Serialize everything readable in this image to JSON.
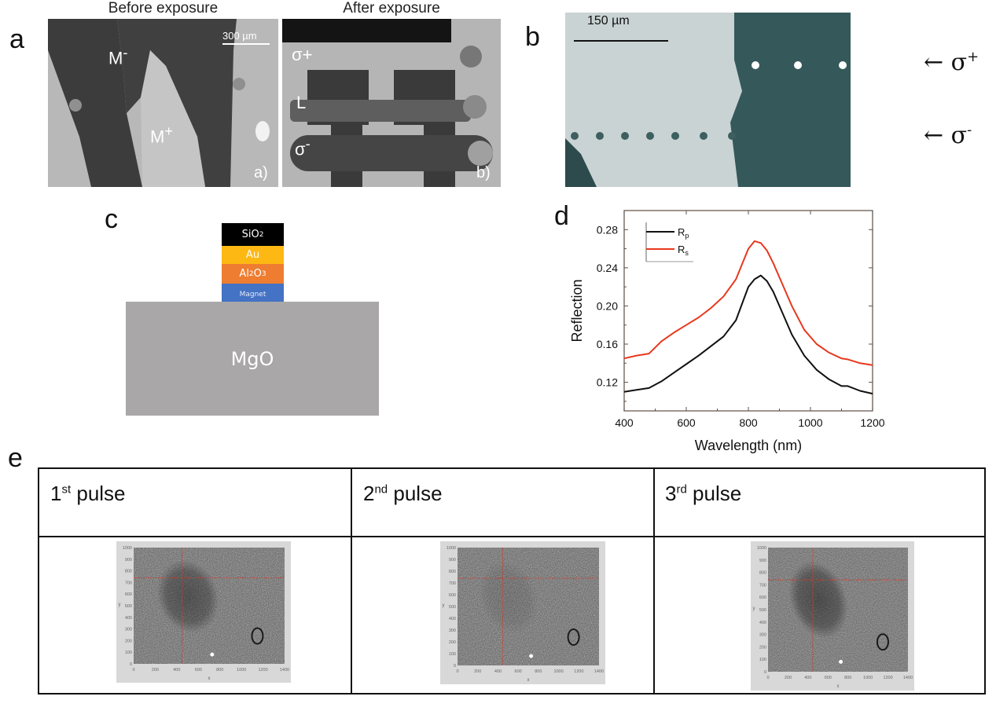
{
  "panels": {
    "a": {
      "letter": "a",
      "left_caption": "Before exposure",
      "right_caption": "After exposure",
      "scale_bar": "300 µm",
      "left_labels": {
        "m_minus": "M",
        "m_minus_sup": "-",
        "m_plus": "M",
        "m_plus_sup": "+",
        "corner": "a)"
      },
      "right_labels": {
        "sigma_plus": "σ+",
        "l": "L",
        "sigma_minus": "σ",
        "sigma_minus_sup": "-",
        "corner": "b)"
      }
    },
    "b": {
      "letter": "b",
      "scale_bar": "150 µm",
      "arrow_top": "← σ",
      "arrow_top_sup": "+",
      "arrow_bottom": "← σ",
      "arrow_bottom_sup": "-"
    },
    "c": {
      "letter": "c",
      "layers": [
        {
          "name": "SiO",
          "sub": "2",
          "tail": "",
          "color": "#000000"
        },
        {
          "name": "Au",
          "sub": "",
          "tail": "",
          "color": "#fdb813"
        },
        {
          "name": "Al",
          "sub": "2",
          "tail": "O",
          "sub2": "3",
          "color": "#ee7d31"
        },
        {
          "name": "Magnet",
          "sub": "",
          "tail": "",
          "color": "#4472c4"
        }
      ],
      "substrate": "MgO",
      "substrate_color": "#a9a7a7"
    },
    "d": {
      "letter": "d"
    },
    "e": {
      "letter": "e",
      "columns": [
        {
          "num": "1",
          "sup": "st",
          "label": " pulse"
        },
        {
          "num": "2",
          "sup": "nd",
          "label": " pulse"
        },
        {
          "num": "3",
          "sup": "rd",
          "label": " pulse"
        }
      ],
      "thumb_axes": {
        "x_ticks": [
          "0",
          "200",
          "400",
          "600",
          "800",
          "1000",
          "1200",
          "1400"
        ],
        "y_ticks": [
          "0",
          "100",
          "200",
          "300",
          "400",
          "500",
          "600",
          "700",
          "800",
          "900",
          "1000"
        ],
        "x_label": "x",
        "y_label": "y"
      }
    }
  },
  "chart_data": {
    "type": "line",
    "title": "",
    "xlabel": "Wavelength (nm)",
    "ylabel": "Reflection",
    "xlim": [
      400,
      1200
    ],
    "ylim": [
      0.09,
      0.3
    ],
    "x_ticks": [
      400,
      600,
      800,
      1000,
      1200
    ],
    "y_ticks": [
      0.12,
      0.16,
      0.2,
      0.24,
      0.28
    ],
    "y_tick_labels": [
      "0.12",
      "0.16",
      "0.20",
      "0.24",
      "0.28"
    ],
    "legend": {
      "position": "top-left"
    },
    "grid": false,
    "series": [
      {
        "name": "Rp",
        "label_main": "R",
        "label_sub": "p",
        "color": "#111111",
        "x": [
          400,
          440,
          480,
          520,
          560,
          600,
          640,
          680,
          720,
          760,
          800,
          820,
          840,
          860,
          880,
          900,
          940,
          980,
          1020,
          1060,
          1100,
          1120,
          1160,
          1200
        ],
        "y": [
          0.11,
          0.112,
          0.114,
          0.121,
          0.13,
          0.139,
          0.148,
          0.158,
          0.168,
          0.185,
          0.22,
          0.228,
          0.232,
          0.226,
          0.215,
          0.2,
          0.17,
          0.148,
          0.133,
          0.123,
          0.116,
          0.116,
          0.111,
          0.108
        ]
      },
      {
        "name": "Rs",
        "label_main": "R",
        "label_sub": "s",
        "color": "#e8381e",
        "x": [
          400,
          440,
          480,
          520,
          560,
          600,
          640,
          680,
          720,
          760,
          800,
          820,
          840,
          860,
          880,
          900,
          940,
          980,
          1020,
          1060,
          1100,
          1120,
          1160,
          1200
        ],
        "y": [
          0.145,
          0.148,
          0.15,
          0.163,
          0.172,
          0.18,
          0.188,
          0.198,
          0.21,
          0.228,
          0.26,
          0.268,
          0.266,
          0.258,
          0.245,
          0.23,
          0.2,
          0.175,
          0.16,
          0.151,
          0.145,
          0.144,
          0.14,
          0.138
        ]
      }
    ]
  }
}
